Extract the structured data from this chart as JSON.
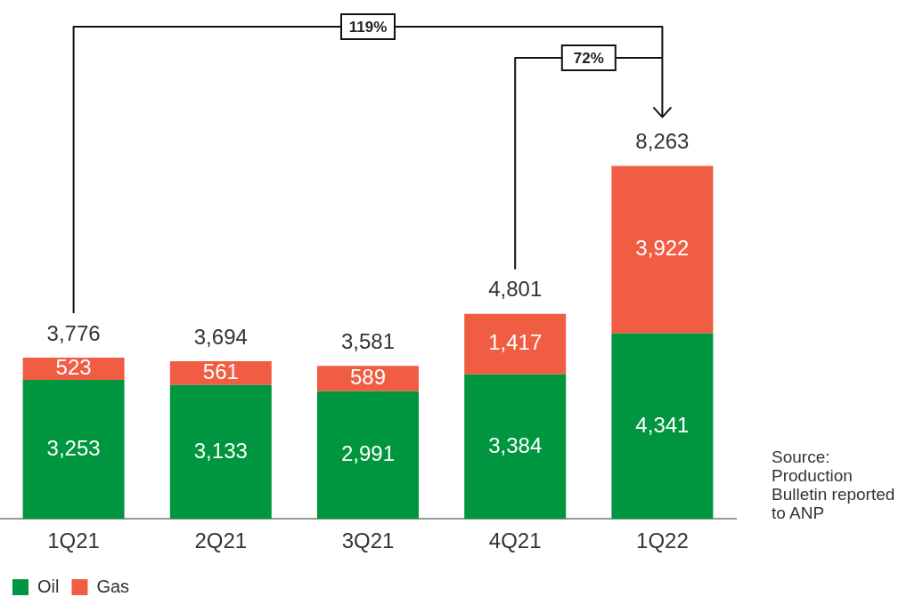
{
  "chart_data": {
    "type": "bar",
    "stacked": true,
    "legend": "bottom left",
    "categories": [
      "1Q21",
      "2Q21",
      "3Q21",
      "4Q21",
      "1Q22"
    ],
    "series": [
      {
        "name": "Oil",
        "color": "#00963f",
        "values": [
          3253,
          3133,
          2991,
          3384,
          4341
        ],
        "value_labels": [
          "3,253",
          "3,133",
          "2,991",
          "3,384",
          "4,341"
        ]
      },
      {
        "name": "Gas",
        "color": "#f05d42",
        "values": [
          523,
          561,
          589,
          1417,
          3922
        ],
        "value_labels": [
          "523",
          "561",
          "589",
          "1,417",
          "3,922"
        ]
      }
    ],
    "totals": [
      "3,776",
      "3,694",
      "3,581",
      "4,801",
      "8,263"
    ],
    "annotations": [
      "119%",
      "72%",
      "Source: Production Bulletin reported to ANP"
    ]
  }
}
